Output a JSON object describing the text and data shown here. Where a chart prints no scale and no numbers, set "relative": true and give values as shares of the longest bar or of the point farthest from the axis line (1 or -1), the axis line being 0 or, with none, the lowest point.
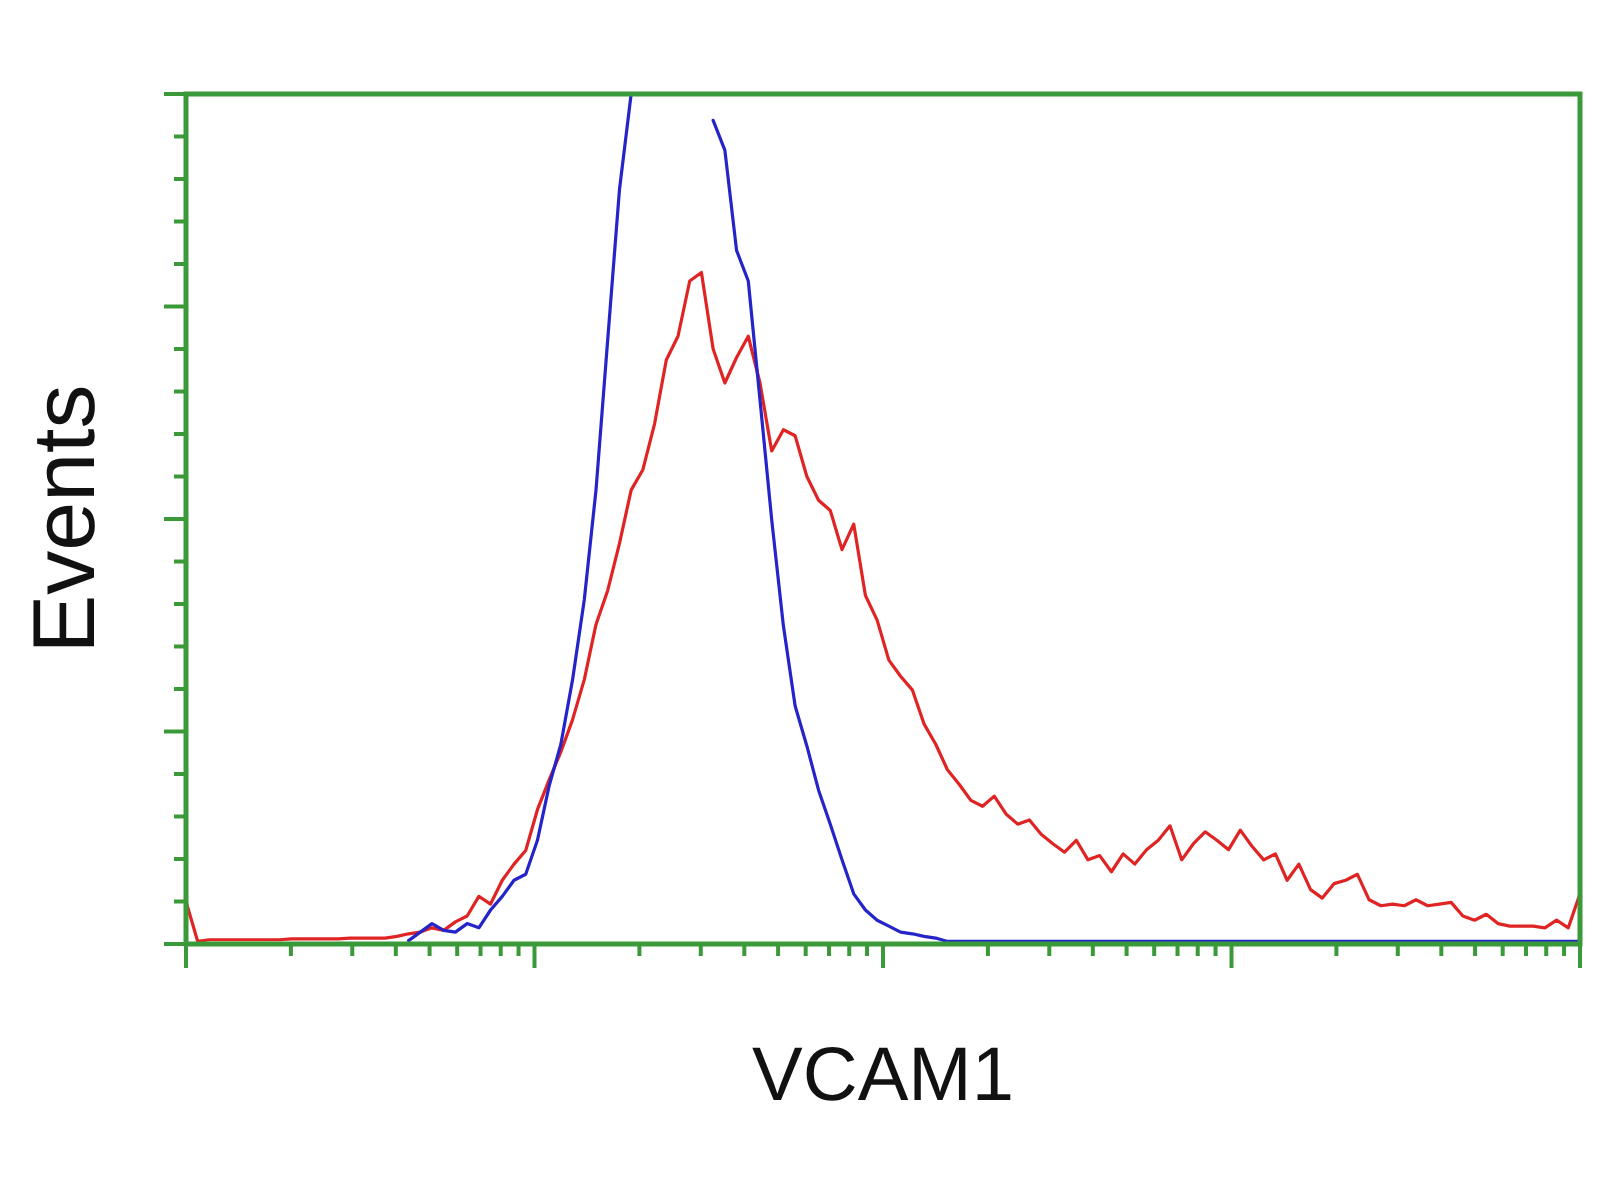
{
  "chart_data": {
    "type": "line",
    "relative": true,
    "xlabel": "VCAM1",
    "ylabel": "Events",
    "line_style": "solid",
    "categories": [
      null,
      null,
      null,
      null,
      null,
      null,
      null,
      null,
      null,
      null,
      null,
      null,
      null,
      null,
      null,
      null,
      null,
      null,
      null,
      null,
      null,
      null,
      null,
      null,
      null,
      null,
      null,
      null,
      null,
      null,
      null,
      null,
      null,
      null,
      null,
      null,
      null,
      null,
      null,
      null,
      null,
      null,
      null,
      null,
      null,
      null,
      null,
      null,
      null,
      null,
      null,
      null,
      null,
      null,
      null,
      null,
      null,
      null,
      null,
      null,
      null,
      null,
      null,
      null,
      null,
      null,
      null,
      null,
      null,
      null,
      null,
      null,
      null,
      null,
      null,
      null,
      null,
      null,
      null,
      null,
      null,
      null,
      null,
      null,
      null,
      null,
      null,
      null,
      null,
      null,
      null,
      null,
      null,
      null,
      null,
      null,
      null,
      null,
      null,
      null,
      null,
      null,
      null,
      null,
      null,
      null,
      null,
      null,
      null,
      null,
      null,
      null,
      null,
      null,
      null,
      null,
      null,
      null,
      null,
      null
    ],
    "series": [
      {
        "color": "#e02424",
        "values": [
          0.05,
          0.003,
          0.005,
          0.005,
          0.005,
          0.005,
          0.005,
          0.005,
          0.005,
          0.006,
          0.006,
          0.006,
          0.006,
          0.006,
          0.007,
          0.007,
          0.007,
          0.007,
          0.009,
          0.012,
          0.014,
          0.019,
          0.016,
          0.026,
          0.033,
          0.056,
          0.047,
          0.075,
          0.094,
          0.11,
          0.158,
          0.193,
          0.226,
          0.264,
          0.311,
          0.376,
          0.416,
          0.471,
          0.534,
          0.558,
          0.612,
          0.687,
          0.715,
          0.78,
          0.79,
          0.7,
          0.66,
          0.69,
          0.715,
          0.66,
          0.58,
          0.605,
          0.598,
          0.55,
          0.522,
          0.51,
          0.464,
          0.494,
          0.41,
          0.381,
          0.334,
          0.315,
          0.299,
          0.259,
          0.235,
          0.205,
          0.188,
          0.169,
          0.162,
          0.174,
          0.153,
          0.141,
          0.146,
          0.129,
          0.118,
          0.108,
          0.122,
          0.099,
          0.104,
          0.085,
          0.106,
          0.094,
          0.111,
          0.122,
          0.139,
          0.099,
          0.118,
          0.132,
          0.122,
          0.111,
          0.134,
          0.115,
          0.099,
          0.106,
          0.075,
          0.094,
          0.064,
          0.054,
          0.071,
          0.075,
          0.082,
          0.052,
          0.045,
          0.047,
          0.045,
          0.052,
          0.045,
          0.047,
          0.049,
          0.033,
          0.028,
          0.035,
          0.024,
          0.021,
          0.021,
          0.021,
          0.019,
          0.028,
          0.019,
          0.059
        ]
      },
      {
        "color": "#2424c8",
        "values": [
          null,
          null,
          null,
          null,
          null,
          null,
          null,
          null,
          null,
          null,
          null,
          null,
          null,
          null,
          null,
          null,
          null,
          null,
          null,
          0.004,
          0.014,
          0.024,
          0.016,
          0.014,
          0.024,
          0.019,
          0.04,
          0.056,
          0.075,
          0.082,
          0.122,
          0.186,
          0.235,
          0.311,
          0.405,
          0.534,
          0.711,
          0.887,
          1,
          null,
          null,
          null,
          null,
          null,
          null,
          0.969,
          0.934,
          0.816,
          0.78,
          0.64,
          0.499,
          0.374,
          0.28,
          0.233,
          0.181,
          0.141,
          0.099,
          0.059,
          0.04,
          0.028,
          0.021,
          0.014,
          0.012,
          0.009,
          0.007,
          0.003,
          0.003,
          0.003,
          0.003,
          0.003,
          0.003,
          0.003,
          0.003,
          0.003,
          0.003,
          0.003,
          0.003,
          0.003,
          0.003,
          0.003,
          0.003,
          0.003,
          0.003,
          0.003,
          0.003,
          0.003,
          0.003,
          0.003,
          0.003,
          0.003,
          0.003,
          0.003,
          0.003,
          0.003,
          0.003,
          0.003,
          0.003,
          0.003,
          0.003,
          0.003,
          0.003,
          0.003,
          0.003,
          0.003,
          0.003,
          0.003,
          0.003,
          0.003,
          0.003,
          0.003,
          0.003,
          0.003,
          0.003,
          0.003,
          0.003,
          0.003,
          0.003,
          0.003,
          0.003,
          0.003
        ]
      }
    ]
  }
}
